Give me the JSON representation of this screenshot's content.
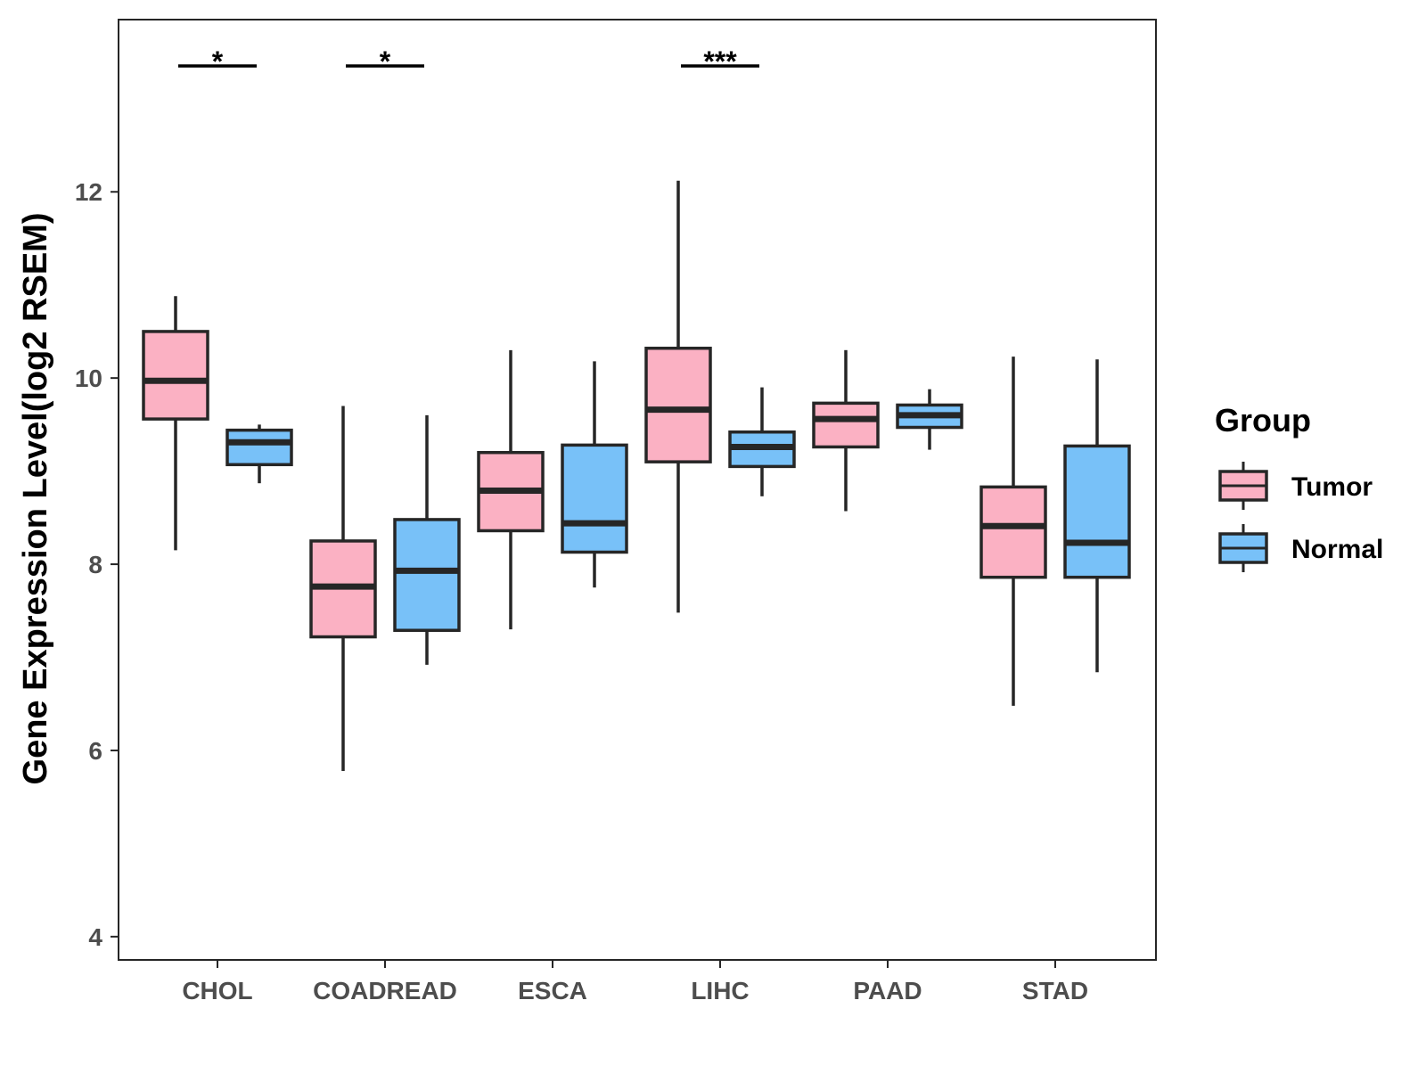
{
  "chart_data": {
    "type": "boxplot",
    "title": "",
    "xlabel": "",
    "ylabel": "Gene Expression Level(log2 RSEM)",
    "ylim": [
      3.75,
      13.85
    ],
    "yticks": [
      4,
      6,
      8,
      10,
      12
    ],
    "ytick_labels": [
      "4",
      "6",
      "8",
      "10",
      "12"
    ],
    "categories": [
      "CHOL",
      "COADREAD",
      "ESCA",
      "LIHC",
      "PAAD",
      "STAD"
    ],
    "legend": {
      "title": "Group",
      "position": "right",
      "entries": [
        {
          "name": "Tumor",
          "color": "#FBB1C3"
        },
        {
          "name": "Normal",
          "color": "#78C1F8"
        }
      ]
    },
    "series": [
      {
        "name": "Tumor",
        "color": "#FBB1C3",
        "boxes": [
          {
            "category": "CHOL",
            "whisker_low": 8.15,
            "q1": 9.56,
            "median": 9.97,
            "q3": 10.5,
            "whisker_high": 10.88
          },
          {
            "category": "COADREAD",
            "whisker_low": 5.78,
            "q1": 7.22,
            "median": 7.76,
            "q3": 8.25,
            "whisker_high": 9.7
          },
          {
            "category": "ESCA",
            "whisker_low": 7.3,
            "q1": 8.36,
            "median": 8.79,
            "q3": 9.2,
            "whisker_high": 10.3
          },
          {
            "category": "LIHC",
            "whisker_low": 7.48,
            "q1": 9.1,
            "median": 9.66,
            "q3": 10.32,
            "whisker_high": 12.12
          },
          {
            "category": "PAAD",
            "whisker_low": 8.57,
            "q1": 9.26,
            "median": 9.56,
            "q3": 9.73,
            "whisker_high": 10.3
          },
          {
            "category": "STAD",
            "whisker_low": 6.48,
            "q1": 7.86,
            "median": 8.41,
            "q3": 8.83,
            "whisker_high": 10.23
          }
        ]
      },
      {
        "name": "Normal",
        "color": "#78C1F8",
        "boxes": [
          {
            "category": "CHOL",
            "whisker_low": 8.87,
            "q1": 9.07,
            "median": 9.31,
            "q3": 9.44,
            "whisker_high": 9.5
          },
          {
            "category": "COADREAD",
            "whisker_low": 6.92,
            "q1": 7.29,
            "median": 7.93,
            "q3": 8.48,
            "whisker_high": 9.6
          },
          {
            "category": "ESCA",
            "whisker_low": 7.75,
            "q1": 8.13,
            "median": 8.44,
            "q3": 9.28,
            "whisker_high": 10.18
          },
          {
            "category": "LIHC",
            "whisker_low": 8.73,
            "q1": 9.05,
            "median": 9.26,
            "q3": 9.42,
            "whisker_high": 9.9
          },
          {
            "category": "PAAD",
            "whisker_low": 9.23,
            "q1": 9.47,
            "median": 9.6,
            "q3": 9.71,
            "whisker_high": 9.88
          },
          {
            "category": "STAD",
            "whisker_low": 6.84,
            "q1": 7.86,
            "median": 8.23,
            "q3": 9.27,
            "whisker_high": 10.2
          }
        ]
      }
    ],
    "significance": [
      {
        "category": "CHOL",
        "label": "*"
      },
      {
        "category": "COADREAD",
        "label": "*"
      },
      {
        "category": "LIHC",
        "label": "***"
      }
    ],
    "grid": false,
    "outline_color": "#262626"
  }
}
